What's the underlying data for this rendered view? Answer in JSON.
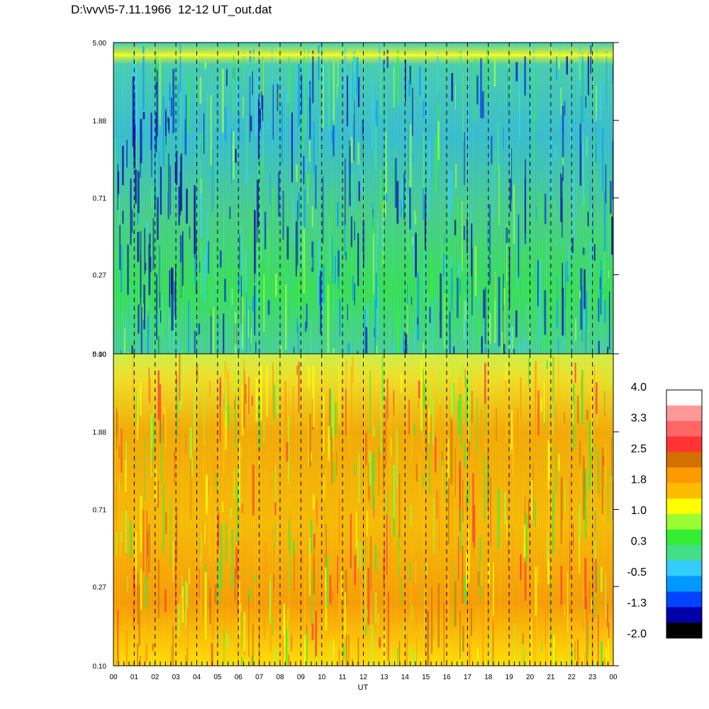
{
  "title": "D:\\vvv\\5-7.11.1966  12-12 UT_out.dat",
  "chart_data": [
    {
      "type": "heatmap",
      "panel": "upper",
      "yticks": [
        "5.00",
        "1.88",
        "0.71",
        "0.27",
        "0.10"
      ],
      "xticks": [
        "00",
        "01",
        "02",
        "03",
        "04",
        "05",
        "06",
        "07",
        "08",
        "09",
        "10",
        "11",
        "12",
        "13",
        "14",
        "15",
        "16",
        "17",
        "18",
        "19",
        "20",
        "21",
        "22",
        "23",
        "00"
      ],
      "xlabel": "",
      "ylabel": "",
      "yscale": "log",
      "ylim": [
        0.1,
        5.0
      ],
      "xlim": [
        0,
        24
      ],
      "dominant_levels": [
        "green",
        "cyan",
        "blue",
        "dark-blue"
      ]
    },
    {
      "type": "heatmap",
      "panel": "lower",
      "yticks": [
        "5.00",
        "1.88",
        "0.71",
        "0.27",
        "0.10"
      ],
      "xticks": [
        "00",
        "01",
        "02",
        "03",
        "04",
        "05",
        "06",
        "07",
        "08",
        "09",
        "10",
        "11",
        "12",
        "13",
        "14",
        "15",
        "16",
        "17",
        "18",
        "19",
        "20",
        "21",
        "22",
        "23",
        "00"
      ],
      "xlabel": "UT",
      "ylabel": "",
      "yscale": "log",
      "ylim": [
        0.1,
        5.0
      ],
      "xlim": [
        0,
        24
      ],
      "dominant_levels": [
        "yellow",
        "orange",
        "green",
        "red"
      ]
    }
  ],
  "colorbar": {
    "labels": [
      "4.0",
      "3.3",
      "2.5",
      "1.8",
      "1.0",
      "0.3",
      "-0.5",
      "-1.3",
      "-2.0"
    ],
    "colors": [
      "#ffffff",
      "#ff9999",
      "#ff6666",
      "#ff3333",
      "#d27000",
      "#ff9900",
      "#ffbb00",
      "#ffff00",
      "#99ff33",
      "#33ee33",
      "#44dd88",
      "#33ccff",
      "#0099ff",
      "#0044ff",
      "#0000aa",
      "#000000"
    ]
  }
}
